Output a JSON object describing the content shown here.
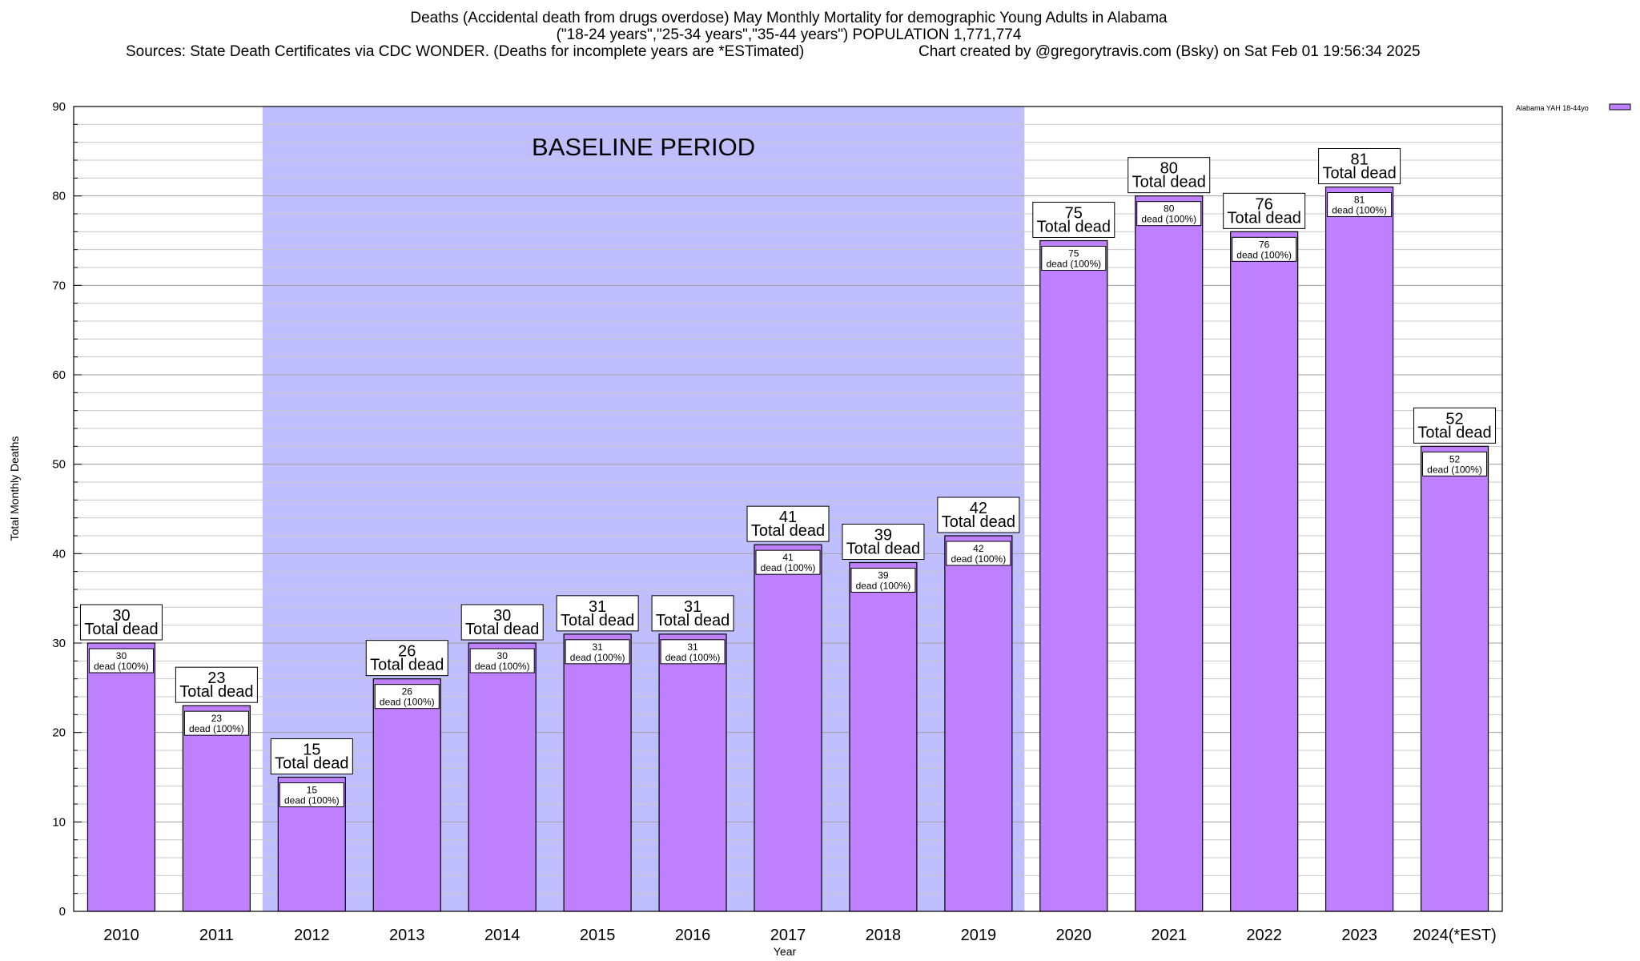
{
  "header": {
    "title_line1": "Deaths (Accidental death from drugs overdose) May Monthly Mortality for demographic Young Adults in Alabama",
    "title_line2": "(\"18-24 years\",\"25-34 years\",\"35-44 years\") POPULATION 1,771,774",
    "sources": "Sources: State Death Certificates via CDC WONDER. (Deaths for incomplete years are *ESTimated)",
    "credit": "Chart created by @gregorytravis.com (Bsky) on Sat Feb 01 19:56:34 2025"
  },
  "chart_data": {
    "type": "bar",
    "xlabel": "Year",
    "ylabel": "Total Monthly Deaths",
    "ylim": [
      0,
      90
    ],
    "yticks": [
      0,
      10,
      20,
      30,
      40,
      50,
      60,
      70,
      80,
      90
    ],
    "grid": true,
    "legend_position": "top-right",
    "categories": [
      "2010",
      "2011",
      "2012",
      "2013",
      "2014",
      "2015",
      "2016",
      "2017",
      "2018",
      "2019",
      "2020",
      "2021",
      "2022",
      "2023",
      "2024(*EST)"
    ],
    "series": [
      {
        "name": "Alabama YAH 18-44yo",
        "color": "#bf80ff",
        "values": [
          30,
          23,
          15,
          26,
          30,
          31,
          31,
          41,
          39,
          42,
          75,
          80,
          76,
          81,
          52
        ]
      }
    ],
    "total_label": "Total dead",
    "inner_label": "dead (100%)",
    "baseline": {
      "label": "BASELINE PERIOD",
      "from_category": "2012",
      "to_category": "2019",
      "color": "#bfbfff"
    }
  }
}
